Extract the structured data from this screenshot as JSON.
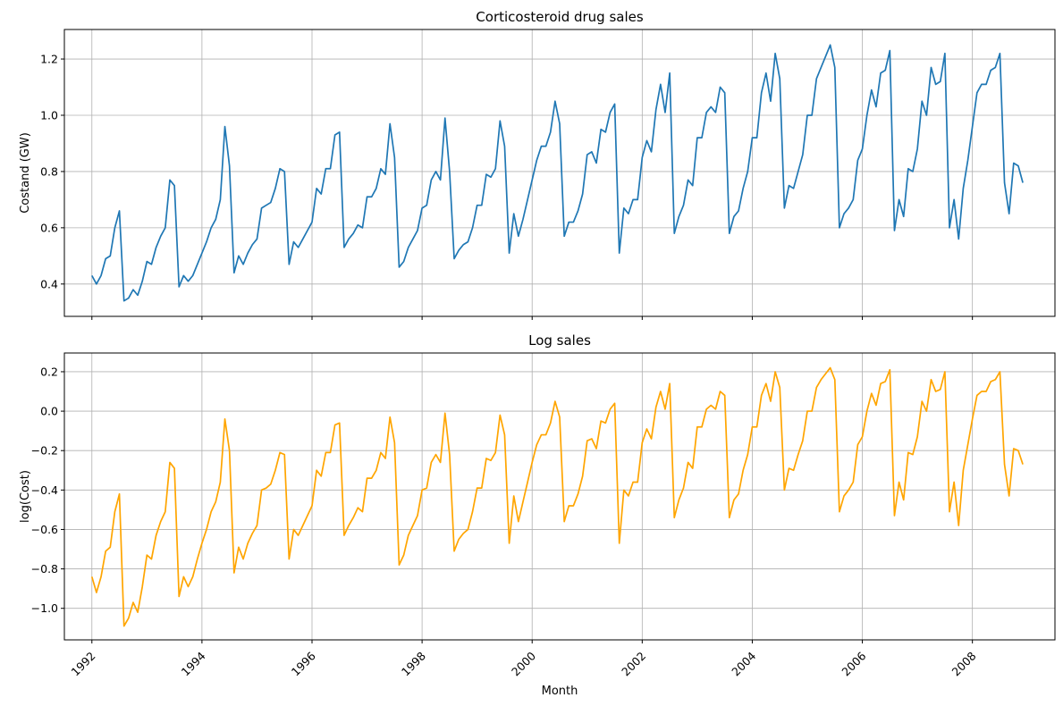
{
  "chart_data": [
    {
      "type": "line",
      "title": "Corticosteroid drug sales",
      "xlabel": "",
      "ylabel": "Costand (GW)",
      "x_start": "1992-01",
      "x_end": "2008-12",
      "xlim": [
        "1991-07",
        "2009-07"
      ],
      "ylim": [
        0.285,
        1.305
      ],
      "yticks": [
        0.4,
        0.6,
        0.8,
        1.0,
        1.2
      ],
      "ytick_labels": [
        "0.4",
        "0.6",
        "0.8",
        "1.0",
        "1.2"
      ],
      "xticks_shown": false,
      "grid": true,
      "color": "#1f77b4",
      "series": [
        {
          "values": [
            0.43,
            0.4,
            0.43,
            0.49,
            0.5,
            0.6,
            0.66,
            0.34,
            0.35,
            0.38,
            0.36,
            0.41,
            0.48,
            0.47,
            0.53,
            0.57,
            0.6,
            0.77,
            0.75,
            0.39,
            0.43,
            0.41,
            0.43,
            0.47,
            0.51,
            0.55,
            0.6,
            0.63,
            0.7,
            0.96,
            0.82,
            0.44,
            0.5,
            0.47,
            0.51,
            0.54,
            0.56,
            0.67,
            0.68,
            0.69,
            0.74,
            0.81,
            0.8,
            0.47,
            0.55,
            0.53,
            0.56,
            0.59,
            0.62,
            0.74,
            0.72,
            0.81,
            0.81,
            0.93,
            0.94,
            0.53,
            0.56,
            0.58,
            0.61,
            0.6,
            0.71,
            0.71,
            0.74,
            0.81,
            0.79,
            0.97,
            0.85,
            0.46,
            0.48,
            0.53,
            0.56,
            0.59,
            0.67,
            0.68,
            0.77,
            0.8,
            0.77,
            0.99,
            0.8,
            0.49,
            0.52,
            0.54,
            0.55,
            0.6,
            0.68,
            0.68,
            0.79,
            0.78,
            0.81,
            0.98,
            0.89,
            0.51,
            0.65,
            0.57,
            0.63,
            0.7,
            0.77,
            0.84,
            0.89,
            0.89,
            0.94,
            1.05,
            0.97,
            0.57,
            0.62,
            0.62,
            0.66,
            0.72,
            0.86,
            0.87,
            0.83,
            0.95,
            0.94,
            1.01,
            1.04,
            0.51,
            0.67,
            0.65,
            0.7,
            0.7,
            0.85,
            0.91,
            0.87,
            1.02,
            1.11,
            1.01,
            1.15,
            0.58,
            0.64,
            0.68,
            0.77,
            0.75,
            0.92,
            0.92,
            1.01,
            1.03,
            1.01,
            1.1,
            1.08,
            0.58,
            0.64,
            0.66,
            0.74,
            0.8,
            0.92,
            0.92,
            1.08,
            1.15,
            1.05,
            1.22,
            1.13,
            0.67,
            0.75,
            0.74,
            0.8,
            0.86,
            1.0,
            1.0,
            1.13,
            1.17,
            1.21,
            1.25,
            1.17,
            0.6,
            0.65,
            0.67,
            0.7,
            0.84,
            0.88,
            1.0,
            1.09,
            1.03,
            1.15,
            1.16,
            1.23,
            0.59,
            0.7,
            0.64,
            0.81,
            0.8,
            0.88,
            1.05,
            1.0,
            1.17,
            1.11,
            1.12,
            1.22,
            0.6,
            0.7,
            0.56,
            0.74,
            0.84,
            0.96,
            1.08,
            1.11,
            1.11,
            1.16,
            1.17,
            1.22,
            0.76,
            0.65,
            0.83,
            0.82,
            0.76
          ]
        }
      ]
    },
    {
      "type": "line",
      "title": "Log sales",
      "xlabel": "Month",
      "ylabel": "log(Cost)",
      "x_start": "1992-01",
      "x_end": "2008-12",
      "xlim": [
        "1991-07",
        "2009-07"
      ],
      "ylim": [
        -1.16,
        0.295
      ],
      "yticks": [
        -1.0,
        -0.8,
        -0.6,
        -0.4,
        -0.2,
        0.0,
        0.2
      ],
      "ytick_labels": [
        "−1.0",
        "−0.8",
        "−0.6",
        "−0.4",
        "−0.2",
        "0.0",
        "0.2"
      ],
      "xticks": [
        "1992",
        "1994",
        "1996",
        "1998",
        "2000",
        "2002",
        "2004",
        "2006",
        "2008"
      ],
      "grid": true,
      "color": "#ffa500",
      "series": [
        {
          "values": [
            -0.84,
            -0.92,
            -0.84,
            -0.71,
            -0.69,
            -0.51,
            -0.42,
            -1.09,
            -1.05,
            -0.97,
            -1.02,
            -0.89,
            -0.73,
            -0.75,
            -0.63,
            -0.56,
            -0.51,
            -0.26,
            -0.29,
            -0.94,
            -0.84,
            -0.89,
            -0.84,
            -0.75,
            -0.67,
            -0.6,
            -0.51,
            -0.46,
            -0.36,
            -0.04,
            -0.2,
            -0.82,
            -0.69,
            -0.75,
            -0.67,
            -0.62,
            -0.58,
            -0.4,
            -0.39,
            -0.37,
            -0.3,
            -0.21,
            -0.22,
            -0.75,
            -0.6,
            -0.63,
            -0.58,
            -0.53,
            -0.48,
            -0.3,
            -0.33,
            -0.21,
            -0.21,
            -0.07,
            -0.06,
            -0.63,
            -0.58,
            -0.54,
            -0.49,
            -0.51,
            -0.34,
            -0.34,
            -0.3,
            -0.21,
            -0.24,
            -0.03,
            -0.16,
            -0.78,
            -0.73,
            -0.63,
            -0.58,
            -0.53,
            -0.4,
            -0.39,
            -0.26,
            -0.22,
            -0.26,
            -0.01,
            -0.22,
            -0.71,
            -0.65,
            -0.62,
            -0.6,
            -0.51,
            -0.39,
            -0.39,
            -0.24,
            -0.25,
            -0.21,
            -0.02,
            -0.12,
            -0.67,
            -0.43,
            -0.56,
            -0.46,
            -0.36,
            -0.26,
            -0.17,
            -0.12,
            -0.12,
            -0.06,
            0.05,
            -0.03,
            -0.56,
            -0.48,
            -0.48,
            -0.42,
            -0.33,
            -0.15,
            -0.14,
            -0.19,
            -0.05,
            -0.06,
            0.01,
            0.04,
            -0.67,
            -0.4,
            -0.43,
            -0.36,
            -0.36,
            -0.16,
            -0.09,
            -0.14,
            0.02,
            0.1,
            0.01,
            0.14,
            -0.54,
            -0.45,
            -0.39,
            -0.26,
            -0.29,
            -0.08,
            -0.08,
            0.01,
            0.03,
            0.01,
            0.1,
            0.08,
            -0.54,
            -0.45,
            -0.42,
            -0.3,
            -0.22,
            -0.08,
            -0.08,
            0.08,
            0.14,
            0.05,
            0.2,
            0.12,
            -0.4,
            -0.29,
            -0.3,
            -0.22,
            -0.15,
            0.0,
            0.0,
            0.12,
            0.16,
            0.19,
            0.22,
            0.16,
            -0.51,
            -0.43,
            -0.4,
            -0.36,
            -0.17,
            -0.13,
            0.0,
            0.09,
            0.03,
            0.14,
            0.15,
            0.21,
            -0.53,
            -0.36,
            -0.45,
            -0.21,
            -0.22,
            -0.13,
            0.05,
            0.0,
            0.16,
            0.1,
            0.11,
            0.2,
            -0.51,
            -0.36,
            -0.58,
            -0.3,
            -0.17,
            -0.04,
            0.08,
            0.1,
            0.1,
            0.15,
            0.16,
            0.2,
            -0.27,
            -0.43,
            -0.19,
            -0.2,
            -0.27
          ]
        }
      ]
    }
  ]
}
